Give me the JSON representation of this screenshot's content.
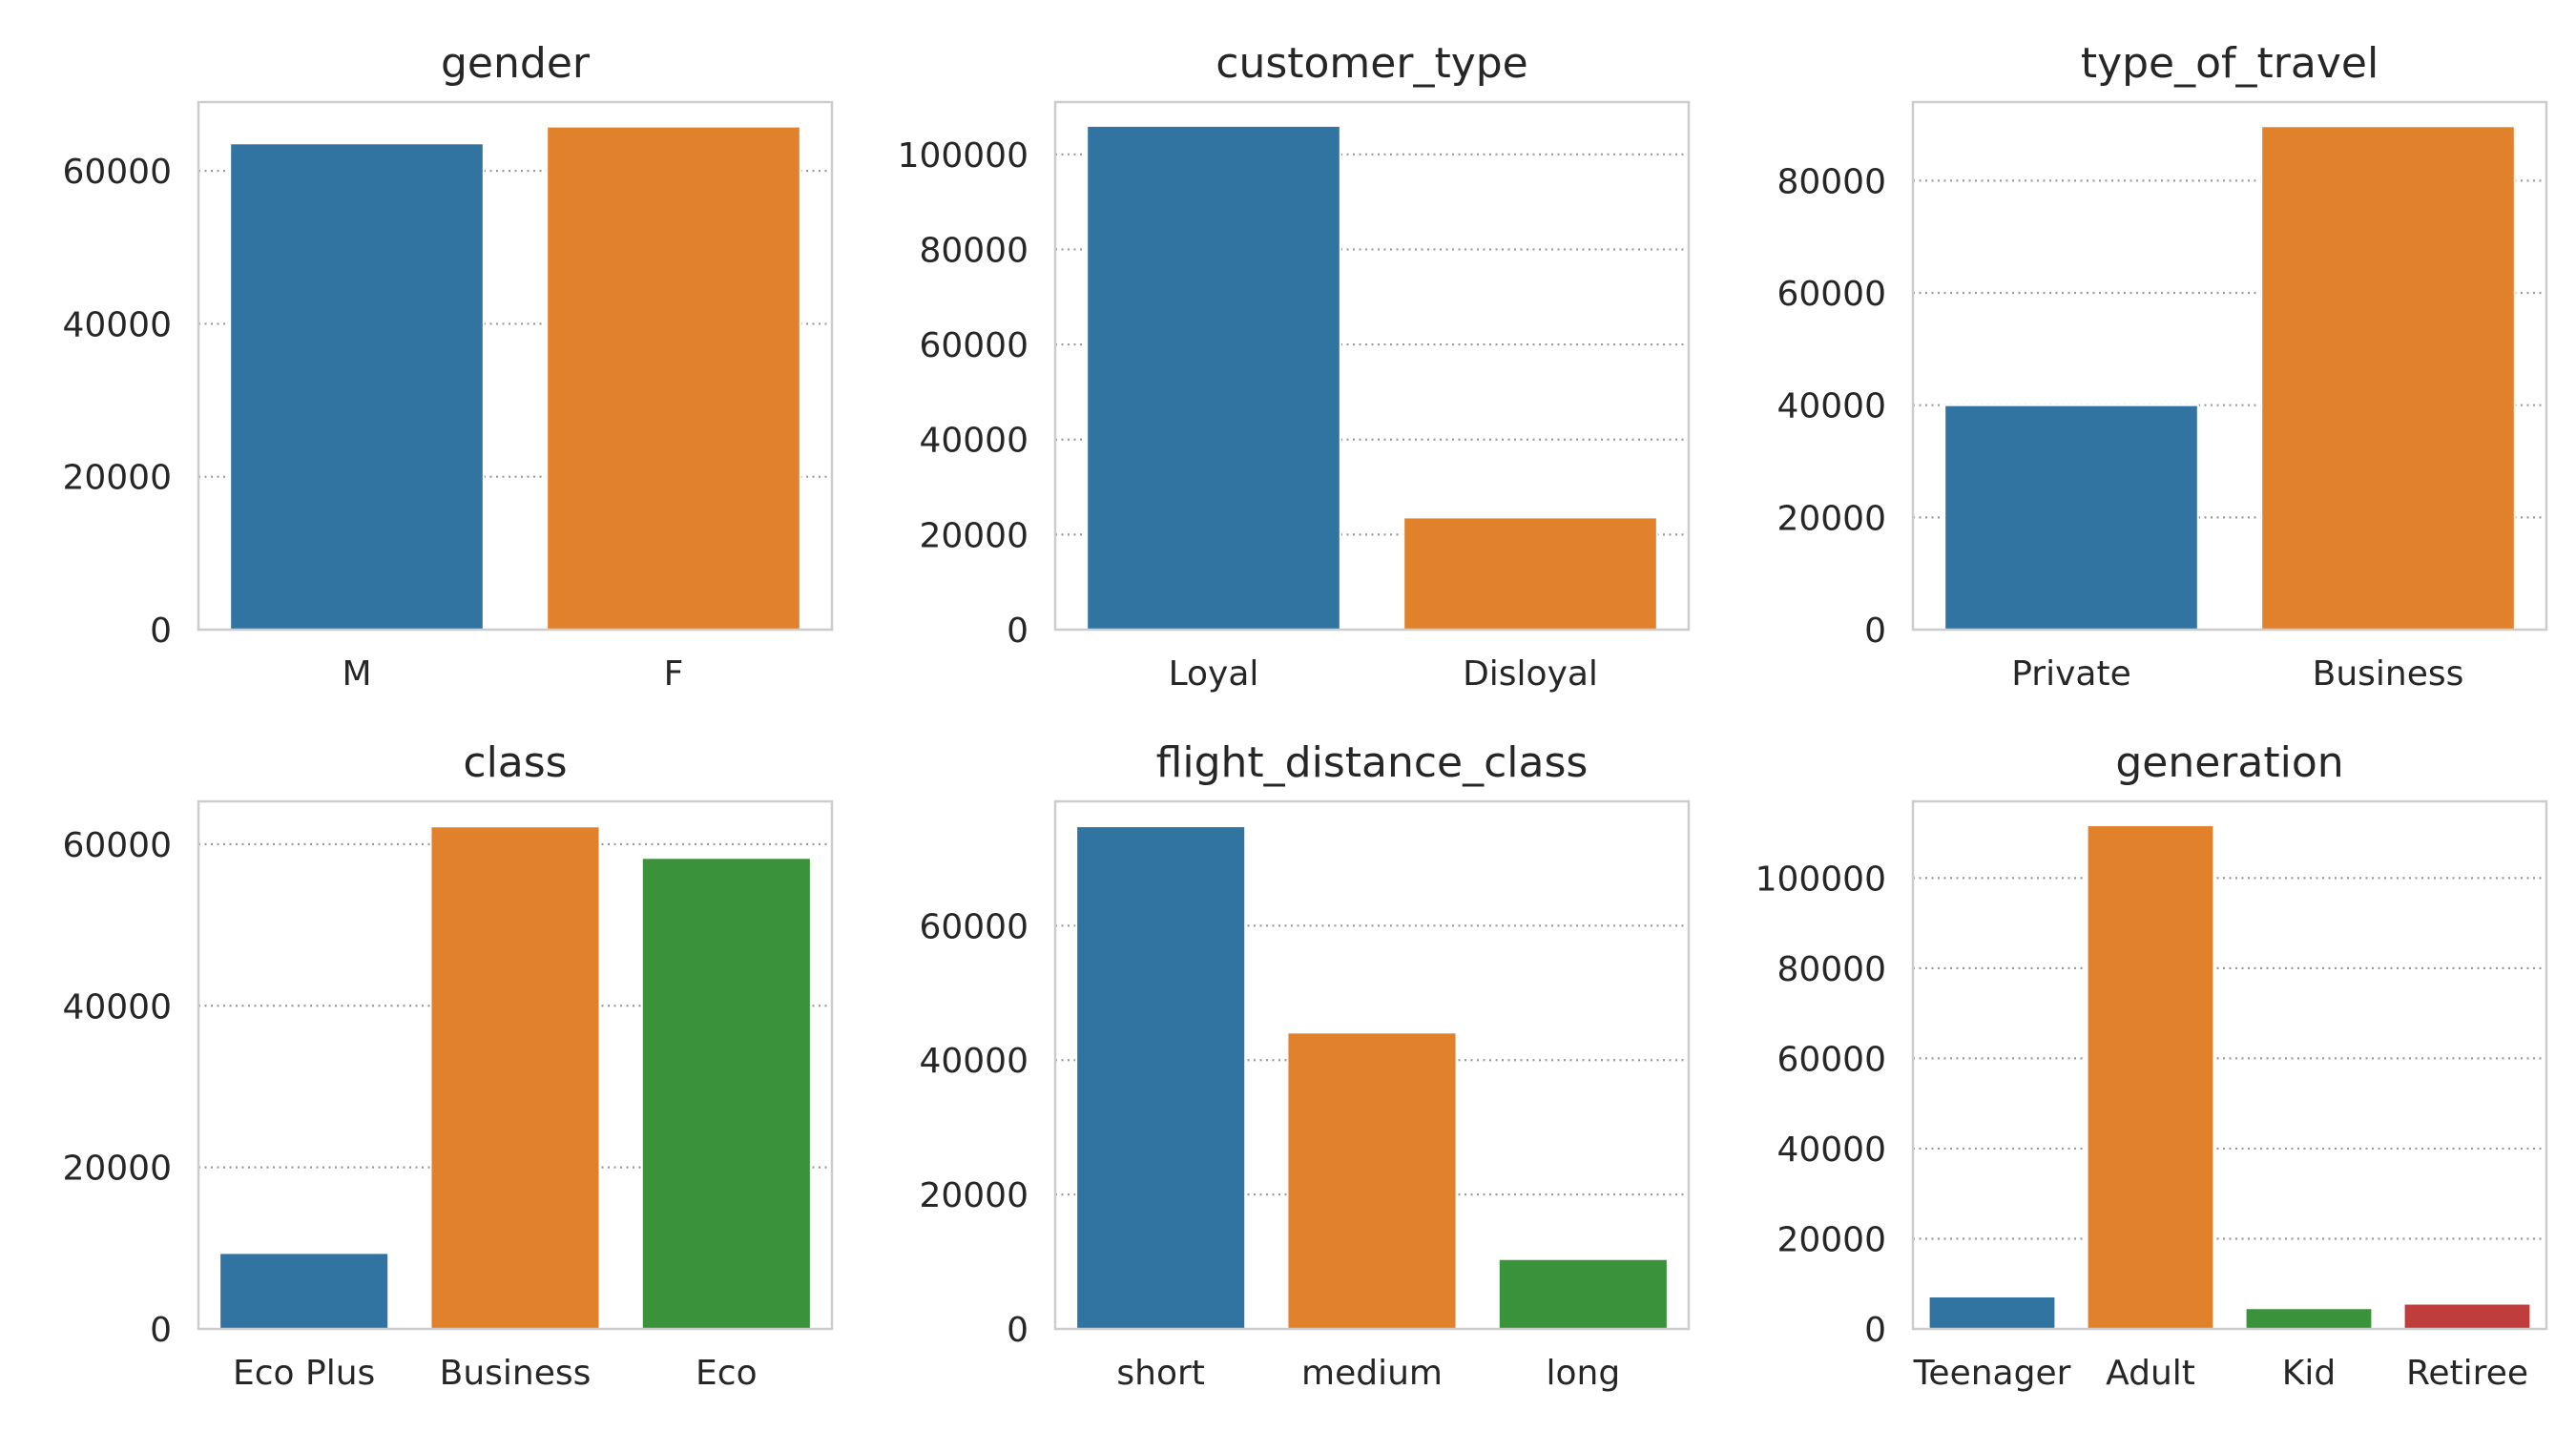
{
  "colors": {
    "palette": [
      "#3274a1",
      "#e1812c",
      "#3a923a",
      "#c03d3e"
    ],
    "frame": "#cccccc",
    "grid": "#999999",
    "text": "#262626"
  },
  "chart_data": [
    {
      "type": "bar",
      "title": "gender",
      "categories": [
        "M",
        "F"
      ],
      "values": [
        63600,
        65800
      ],
      "ylim": [
        0,
        69000
      ],
      "yticks": [
        0,
        20000,
        40000,
        60000
      ],
      "ytick_labels": [
        "0",
        "20000",
        "40000",
        "60000"
      ],
      "grid": "y-dotted"
    },
    {
      "type": "bar",
      "title": "customer_type",
      "categories": [
        "Loyal",
        "Disloyal"
      ],
      "values": [
        106000,
        23600
      ],
      "ylim": [
        0,
        111000
      ],
      "yticks": [
        0,
        20000,
        40000,
        60000,
        80000,
        100000
      ],
      "ytick_labels": [
        "0",
        "20000",
        "40000",
        "60000",
        "80000",
        "100000"
      ],
      "grid": "y-dotted"
    },
    {
      "type": "bar",
      "title": "type_of_travel",
      "categories": [
        "Private",
        "Business"
      ],
      "values": [
        40000,
        89700
      ],
      "ylim": [
        0,
        94000
      ],
      "yticks": [
        0,
        20000,
        40000,
        60000,
        80000
      ],
      "ytick_labels": [
        "0",
        "20000",
        "40000",
        "60000",
        "80000"
      ],
      "grid": "y-dotted"
    },
    {
      "type": "bar",
      "title": "class",
      "categories": [
        "Eco Plus",
        "Business",
        "Eco"
      ],
      "values": [
        9400,
        62200,
        58300
      ],
      "ylim": [
        0,
        65300
      ],
      "yticks": [
        0,
        20000,
        40000,
        60000
      ],
      "ytick_labels": [
        "0",
        "20000",
        "40000",
        "60000"
      ],
      "grid": "y-dotted"
    },
    {
      "type": "bar",
      "title": "flight_distance_class",
      "categories": [
        "short",
        "medium",
        "long"
      ],
      "values": [
        74800,
        44100,
        10400
      ],
      "ylim": [
        0,
        78500
      ],
      "yticks": [
        0,
        20000,
        40000,
        60000
      ],
      "ytick_labels": [
        "0",
        "20000",
        "40000",
        "60000"
      ],
      "grid": "y-dotted"
    },
    {
      "type": "bar",
      "title": "generation",
      "categories": [
        "Teenager",
        "Adult",
        "Kid",
        "Retiree"
      ],
      "values": [
        7200,
        111700,
        4600,
        5600
      ],
      "ylim": [
        0,
        117000
      ],
      "yticks": [
        0,
        20000,
        40000,
        60000,
        80000,
        100000
      ],
      "ytick_labels": [
        "0",
        "20000",
        "40000",
        "60000",
        "80000",
        "100000"
      ],
      "grid": "y-dotted"
    }
  ]
}
